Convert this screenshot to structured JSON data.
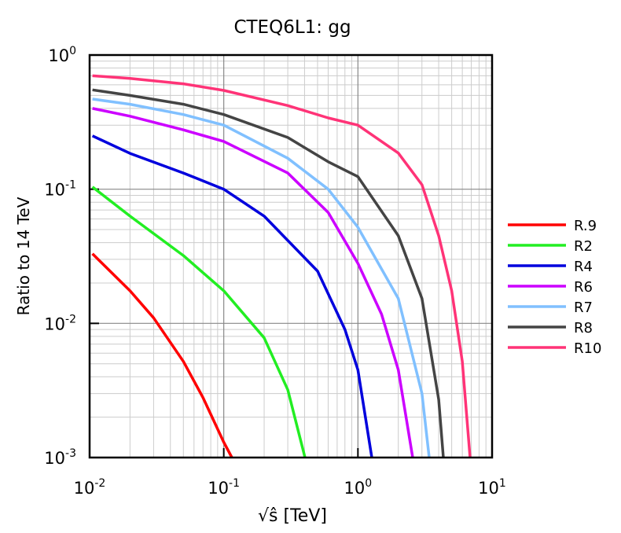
{
  "chart_data": {
    "type": "line",
    "title": "CTEQ6L1: gg",
    "xlabel": "√ŝ [TeV]",
    "ylabel": "Ratio to 14 TeV",
    "xscale": "log",
    "yscale": "log",
    "xlim": [
      0.01,
      10
    ],
    "ylim": [
      0.001,
      1
    ],
    "xticks": [
      {
        "value": 0.01,
        "label": "10",
        "exponent": "-2"
      },
      {
        "value": 0.1,
        "label": "10",
        "exponent": "-1"
      },
      {
        "value": 1,
        "label": "10",
        "exponent": "0"
      },
      {
        "value": 10,
        "label": "10",
        "exponent": "1"
      }
    ],
    "yticks": [
      {
        "value": 0.001,
        "label": "10",
        "exponent": "-3"
      },
      {
        "value": 0.01,
        "label": "10",
        "exponent": "-2"
      },
      {
        "value": 0.1,
        "label": "10",
        "exponent": "-1"
      },
      {
        "value": 1,
        "label": "10",
        "exponent": "0"
      }
    ],
    "grid": true,
    "minor_grid": true,
    "legend": "right",
    "series": [
      {
        "name": "R.9",
        "color": "#ff0000",
        "x": [
          0.0105,
          0.02,
          0.03,
          0.05,
          0.07,
          0.1,
          0.115
        ],
        "values": [
          0.033,
          0.0175,
          0.011,
          0.0052,
          0.0028,
          0.0013,
          0.001
        ]
      },
      {
        "name": "R2",
        "color": "#22ee22",
        "x": [
          0.0105,
          0.02,
          0.05,
          0.1,
          0.2,
          0.3,
          0.403
        ],
        "values": [
          0.104,
          0.063,
          0.032,
          0.0175,
          0.0078,
          0.0032,
          0.001
        ]
      },
      {
        "name": "R4",
        "color": "#0000dd",
        "x": [
          0.0105,
          0.02,
          0.05,
          0.1,
          0.2,
          0.5,
          0.8,
          1.0,
          1.27
        ],
        "values": [
          0.25,
          0.185,
          0.132,
          0.1,
          0.063,
          0.0245,
          0.009,
          0.0045,
          0.001
        ]
      },
      {
        "name": "R6",
        "color": "#cc00ff",
        "x": [
          0.0105,
          0.02,
          0.05,
          0.1,
          0.3,
          0.6,
          1.0,
          1.5,
          2.0,
          2.56
        ],
        "values": [
          0.4,
          0.35,
          0.277,
          0.227,
          0.132,
          0.067,
          0.028,
          0.0117,
          0.0045,
          0.001
        ]
      },
      {
        "name": "R7",
        "color": "#80c0ff",
        "x": [
          0.0105,
          0.02,
          0.05,
          0.1,
          0.3,
          0.6,
          1.0,
          2.0,
          3.0,
          3.4
        ],
        "values": [
          0.47,
          0.43,
          0.36,
          0.3,
          0.17,
          0.1,
          0.052,
          0.0153,
          0.003,
          0.001
        ]
      },
      {
        "name": "R8",
        "color": "#444444",
        "x": [
          0.0105,
          0.02,
          0.05,
          0.1,
          0.3,
          0.6,
          1.0,
          2.0,
          3.0,
          4.0,
          4.33
        ],
        "values": [
          0.55,
          0.5,
          0.43,
          0.36,
          0.243,
          0.16,
          0.124,
          0.045,
          0.0153,
          0.0027,
          0.001
        ]
      },
      {
        "name": "R10",
        "color": "#ff3377",
        "x": [
          0.0105,
          0.02,
          0.05,
          0.1,
          0.3,
          0.6,
          1.0,
          2.0,
          3.0,
          4.0,
          5.0,
          6.0,
          6.85
        ],
        "values": [
          0.7,
          0.67,
          0.61,
          0.545,
          0.42,
          0.34,
          0.3,
          0.186,
          0.108,
          0.045,
          0.0175,
          0.0052,
          0.001
        ]
      }
    ]
  }
}
